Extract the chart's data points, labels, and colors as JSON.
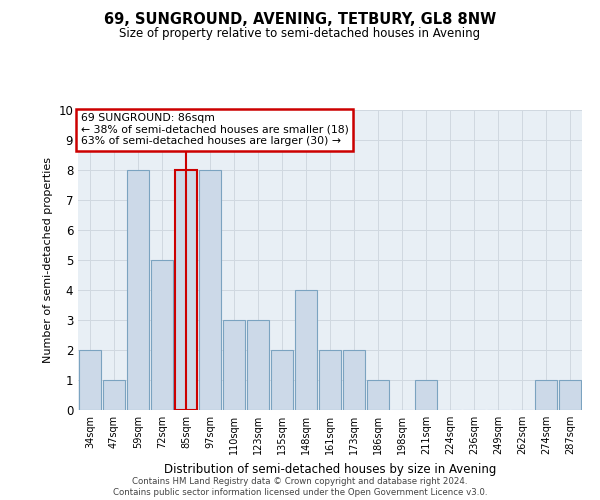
{
  "title": "69, SUNGROUND, AVENING, TETBURY, GL8 8NW",
  "subtitle": "Size of property relative to semi-detached houses in Avening",
  "xlabel": "Distribution of semi-detached houses by size in Avening",
  "ylabel": "Number of semi-detached properties",
  "categories": [
    "34sqm",
    "47sqm",
    "59sqm",
    "72sqm",
    "85sqm",
    "97sqm",
    "110sqm",
    "123sqm",
    "135sqm",
    "148sqm",
    "161sqm",
    "173sqm",
    "186sqm",
    "198sqm",
    "211sqm",
    "224sqm",
    "236sqm",
    "249sqm",
    "262sqm",
    "274sqm",
    "287sqm"
  ],
  "values": [
    2,
    1,
    8,
    5,
    8,
    8,
    3,
    3,
    2,
    4,
    2,
    2,
    1,
    0,
    1,
    0,
    0,
    0,
    0,
    1,
    1
  ],
  "highlight_index": 4,
  "bar_color": "#ccd9e8",
  "bar_edge_color": "#7ba3c0",
  "highlight_bar_edge_color": "#cc0000",
  "vline_color": "#cc0000",
  "annotation_title": "69 SUNGROUND: 86sqm",
  "annotation_line1": "← 38% of semi-detached houses are smaller (18)",
  "annotation_line2": "63% of semi-detached houses are larger (30) →",
  "annotation_box_color": "#ffffff",
  "annotation_box_edge": "#cc0000",
  "grid_color": "#d0d8e0",
  "background_color": "#e8eff5",
  "ylim": [
    0,
    10
  ],
  "yticks": [
    0,
    1,
    2,
    3,
    4,
    5,
    6,
    7,
    8,
    9,
    10
  ],
  "footer1": "Contains HM Land Registry data © Crown copyright and database right 2024.",
  "footer2": "Contains public sector information licensed under the Open Government Licence v3.0."
}
